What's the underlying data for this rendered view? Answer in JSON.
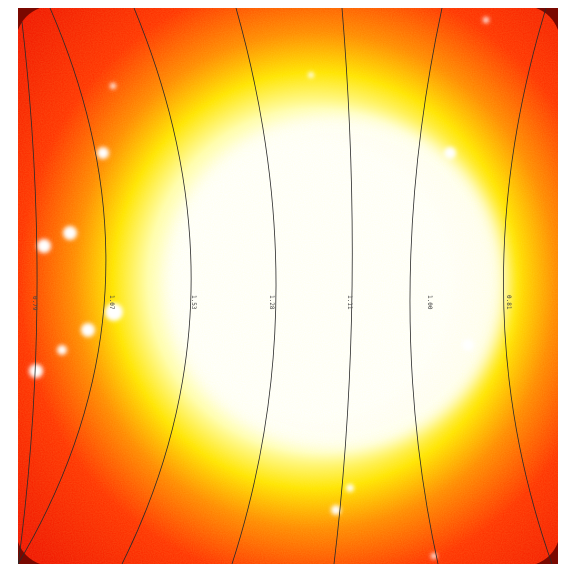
{
  "image": {
    "colors": {
      "outer_dark": "#8b0b00",
      "red": "#ff2200",
      "orange": "#ff7a00",
      "yellow": "#ffff33",
      "white": "#ffffff",
      "contour_line": "#2a2a2a"
    },
    "contour_labels": [
      "0.79",
      "1.07",
      "1.53",
      "1.28",
      "1.11",
      "1.00",
      "0.81"
    ]
  }
}
